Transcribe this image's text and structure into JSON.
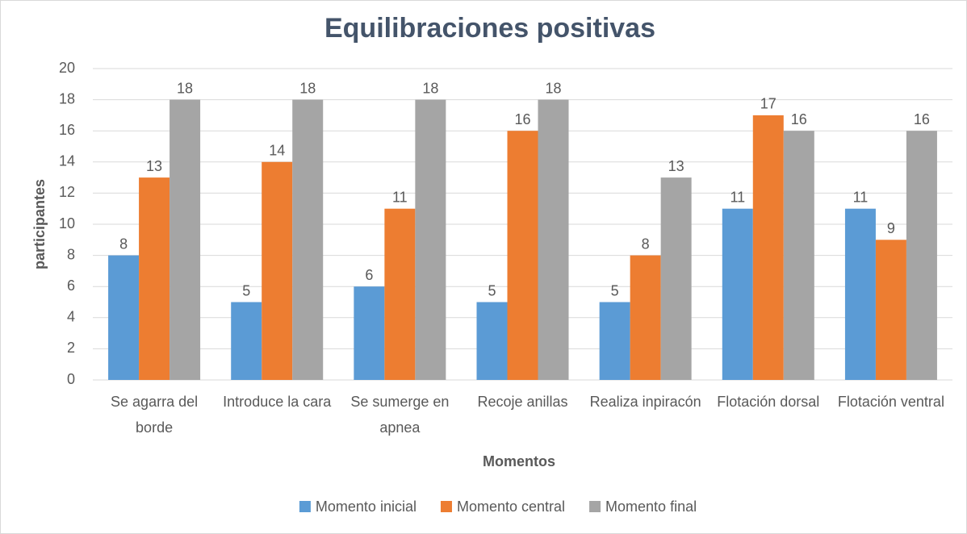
{
  "chart_data": {
    "type": "bar",
    "title": "Equilibraciones positivas",
    "x_label": "Momentos",
    "y_label": "participantes",
    "categories": [
      "Se agarra del borde",
      "Introduce la cara",
      "Se sumerge en apnea",
      "Recoje anillas",
      "Realiza inpiracón",
      "Flotación dorsal",
      "Flotación ventral"
    ],
    "series": [
      {
        "name": "Momento inicial",
        "color": "#5b9bd5",
        "values": [
          8,
          5,
          6,
          5,
          5,
          11,
          11
        ]
      },
      {
        "name": "Momento central",
        "color": "#ed7d31",
        "values": [
          13,
          14,
          11,
          16,
          8,
          17,
          9
        ]
      },
      {
        "name": "Momento final",
        "color": "#a5a5a5",
        "values": [
          18,
          18,
          18,
          18,
          13,
          16,
          16
        ]
      }
    ],
    "ylim": [
      0,
      20
    ],
    "yticks": [
      0,
      2,
      4,
      6,
      8,
      10,
      12,
      14,
      16,
      18,
      20
    ],
    "grid": true,
    "legend": "bottom"
  }
}
